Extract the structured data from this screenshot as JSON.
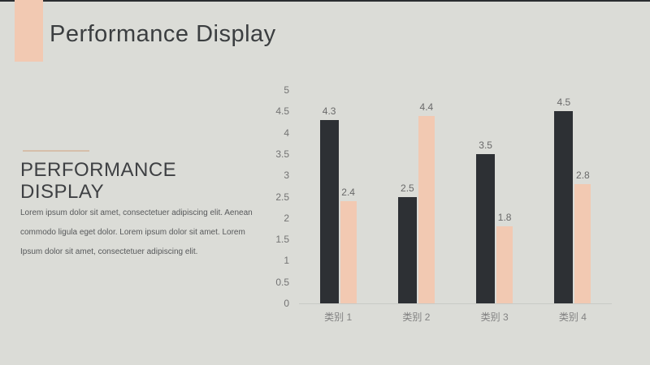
{
  "slide": {
    "title": "Performance Display"
  },
  "section": {
    "heading": "PERFORMANCE DISPLAY",
    "body_lines": [
      "Lorem ipsum dolor sit amet, consectetuer adipiscing elit. Aenean",
      "commodo ligula eget dolor. Lorem ipsum dolor sit amet. Lorem",
      "Ipsum dolor sit amet, consectetuer adipiscing elit."
    ]
  },
  "colors": {
    "background": "#dbdcd7",
    "accent": "#f2c9b2",
    "bar_dark": "#2d3034",
    "bar_light": "#f2c9b2",
    "title_text": "#3b3e40",
    "body_text": "#57595b",
    "axis_text": "#737373",
    "category_text": "#828282",
    "data_label_text": "#696969",
    "divider": "#d6beaa",
    "baseline": "#c8cac6",
    "top_strip": "#2a2d30"
  },
  "chart_data": {
    "type": "bar",
    "title": "",
    "categories": [
      "类别 1",
      "类别 2",
      "类别 3",
      "类别 4"
    ],
    "series": [
      {
        "name": "series-1-dark",
        "color": "#2d3034",
        "values": [
          4.3,
          2.5,
          3.5,
          4.5
        ]
      },
      {
        "name": "series-2-peach",
        "color": "#f2c9b2",
        "values": [
          2.4,
          4.4,
          1.8,
          2.8
        ]
      }
    ],
    "ylim": [
      0,
      5
    ],
    "yticks": [
      0,
      0.5,
      1,
      1.5,
      2,
      2.5,
      3,
      3.5,
      4,
      4.5,
      5
    ],
    "grid": false,
    "legend": "none",
    "data_labels": true
  }
}
